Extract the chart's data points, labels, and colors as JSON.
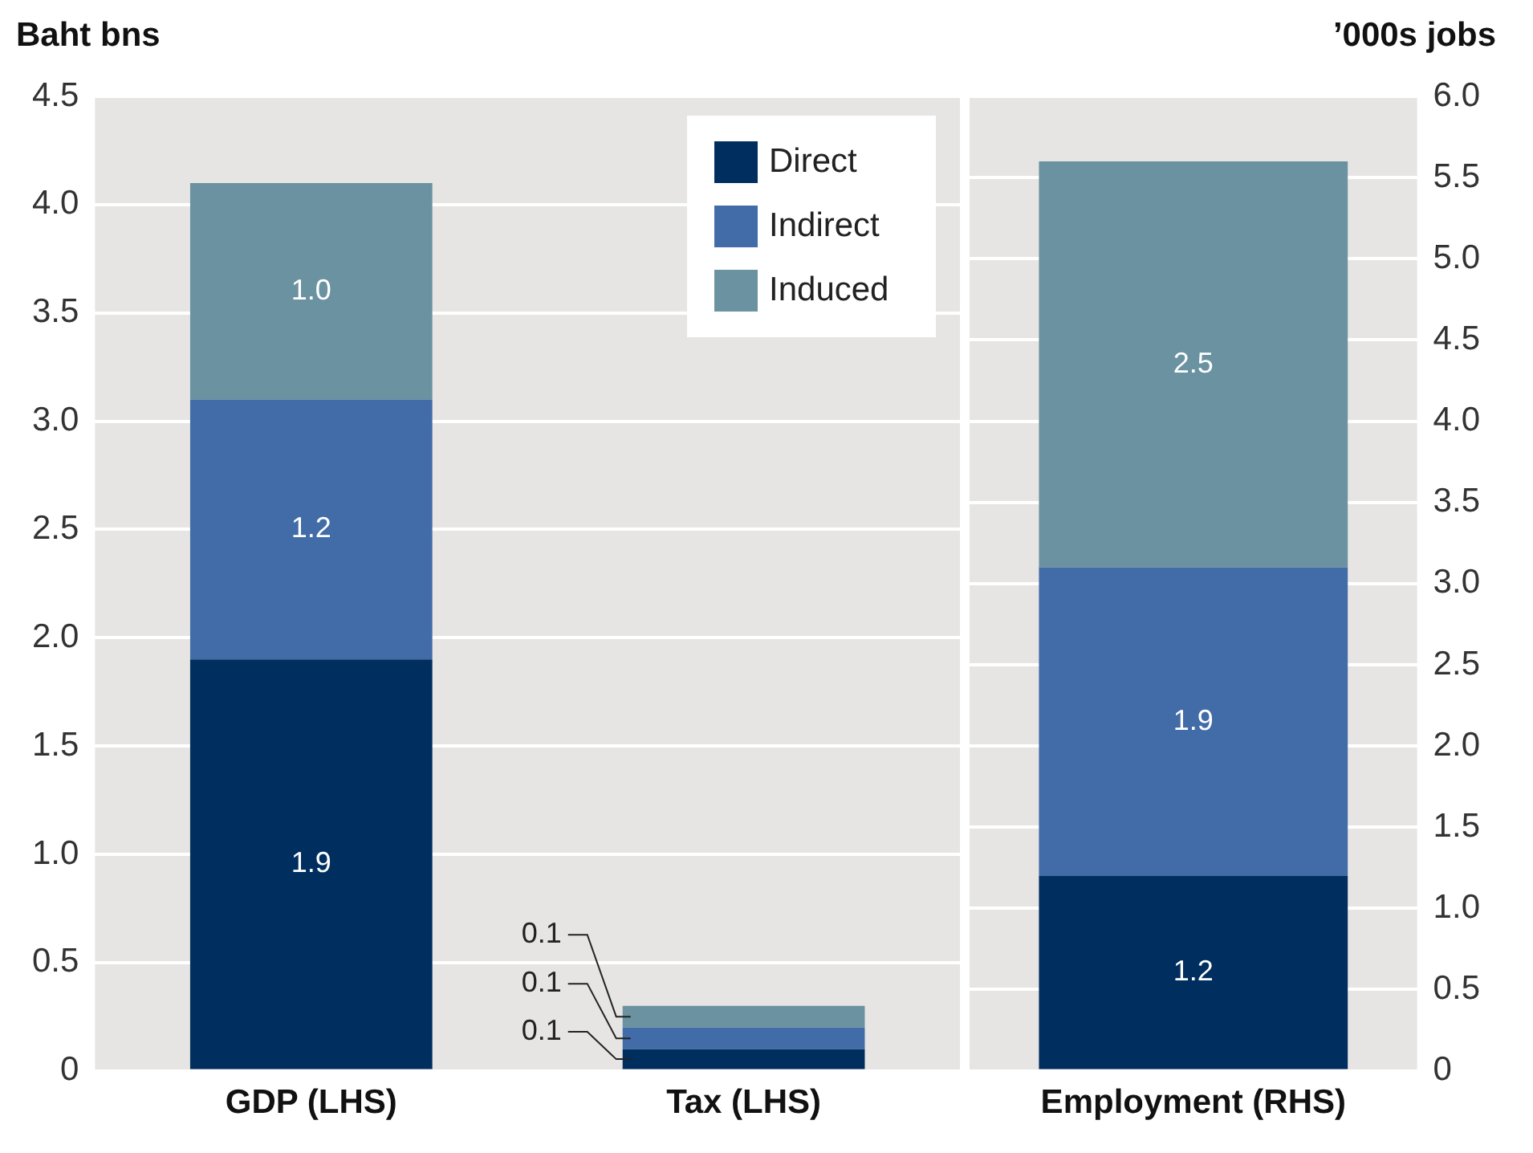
{
  "chart_data": [
    {
      "type": "bar",
      "stacked": true,
      "ylabel": "Baht bns",
      "categories": [
        "GDP (LHS)",
        "Tax (LHS)"
      ],
      "series": [
        {
          "name": "Direct",
          "color": "#002f5f",
          "values": [
            1.9,
            0.1
          ],
          "value_labels": [
            "1.9",
            "0.1"
          ]
        },
        {
          "name": "Indirect",
          "color": "#426ca8",
          "values": [
            1.2,
            0.1
          ],
          "value_labels": [
            "1.2",
            "0.1"
          ]
        },
        {
          "name": "Induced",
          "color": "#6b92a0",
          "values": [
            1.0,
            0.1
          ],
          "value_labels": [
            "1.0",
            "0.1"
          ]
        }
      ],
      "ylim": [
        0,
        4.5
      ],
      "yticks": [
        0,
        {
          "value": 0.5,
          "label": "0.5"
        },
        {
          "value": 1,
          "label": "1.0"
        },
        {
          "value": 1.5,
          "label": "1.5"
        },
        {
          "value": 2,
          "label": "2.0"
        },
        {
          "value": 2.5,
          "label": "2.5"
        },
        {
          "value": 3,
          "label": "3.0"
        },
        {
          "value": 3.5,
          "label": "3.5"
        },
        {
          "value": 4,
          "label": "4.0"
        },
        {
          "value": 4.5,
          "label": "4.5"
        }
      ],
      "grid": "y",
      "legend": "top right"
    },
    {
      "type": "bar",
      "stacked": true,
      "y2label": "’000s jobs",
      "categories": [
        "Employment (RHS)"
      ],
      "series": [
        {
          "color": "#002f5f",
          "values": [
            1.2
          ],
          "value_labels": [
            "1.2"
          ],
          "axis": "y2"
        },
        {
          "color": "#426ca8",
          "values": [
            1.9
          ],
          "value_labels": [
            "1.9"
          ],
          "axis": "y2"
        },
        {
          "color": "#6b92a0",
          "values": [
            2.5
          ],
          "value_labels": [
            "2.5"
          ],
          "axis": "y2"
        }
      ],
      "y2lim": [
        0,
        6
      ],
      "y2ticks": [
        0,
        {
          "value": 0.5,
          "label": "0.5"
        },
        {
          "value": 1,
          "label": "1.0"
        },
        {
          "value": 1.5,
          "label": "1.5"
        },
        {
          "value": 2,
          "label": "2.0"
        },
        {
          "value": 2.5,
          "label": "2.5"
        },
        {
          "value": 3,
          "label": "3.0"
        },
        {
          "value": 3.5,
          "label": "3.5"
        },
        {
          "value": 4,
          "label": "4.0"
        },
        {
          "value": 4.5,
          "label": "4.5"
        },
        {
          "value": 5,
          "label": "5.0"
        },
        {
          "value": 5.5,
          "label": "5.5"
        },
        {
          "value": 6,
          "label": "6.0"
        }
      ],
      "grid": "y"
    }
  ]
}
